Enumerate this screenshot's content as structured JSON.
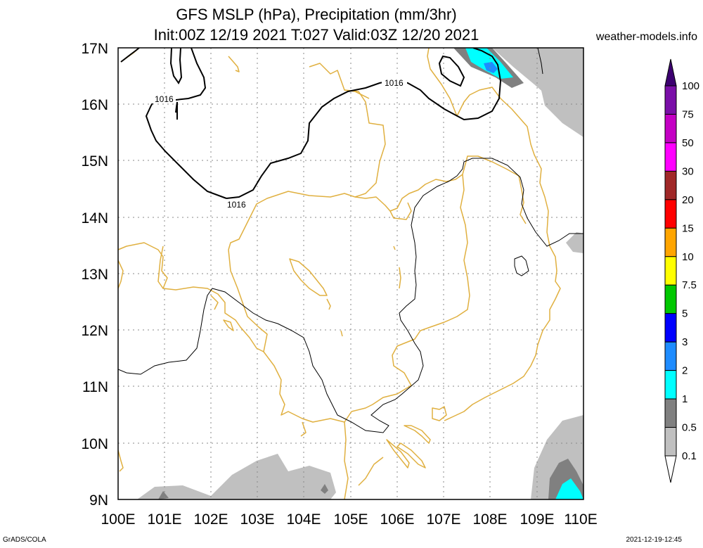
{
  "title_line1": "GFS MSLP (hPa), Precipitation (mm/3hr)",
  "title_line2": "Init:00Z 12/19 2021 T:027 Valid:03Z 12/20 2021",
  "site": "weather-models.info",
  "footer_left": "GrADS/COLA",
  "footer_right": "2021-12-19-12:45",
  "map": {
    "lon_ticks": [
      "100E",
      "101E",
      "102E",
      "103E",
      "104E",
      "105E",
      "106E",
      "107E",
      "108E",
      "109E",
      "110E"
    ],
    "lat_ticks": [
      "17N",
      "16N",
      "15N",
      "14N",
      "13N",
      "12N",
      "11N",
      "10N",
      "9N"
    ],
    "isobar_labels": [
      "1016",
      "1016",
      "1016"
    ],
    "border_color": "#e0b040",
    "isobar_color": "#000000"
  },
  "legend": {
    "labels": [
      "100",
      "75",
      "50",
      "30",
      "20",
      "15",
      "10",
      "7.5",
      "5",
      "3",
      "2",
      "1",
      "0.5",
      "0.1"
    ],
    "colors": [
      "#3c0070",
      "#7a0fa8",
      "#c400c4",
      "#ff00ff",
      "#a02828",
      "#ff0000",
      "#ffa500",
      "#ffff00",
      "#00c800",
      "#0000ff",
      "#1e8cff",
      "#00ffff",
      "#808080",
      "#c0c0c0"
    ]
  }
}
